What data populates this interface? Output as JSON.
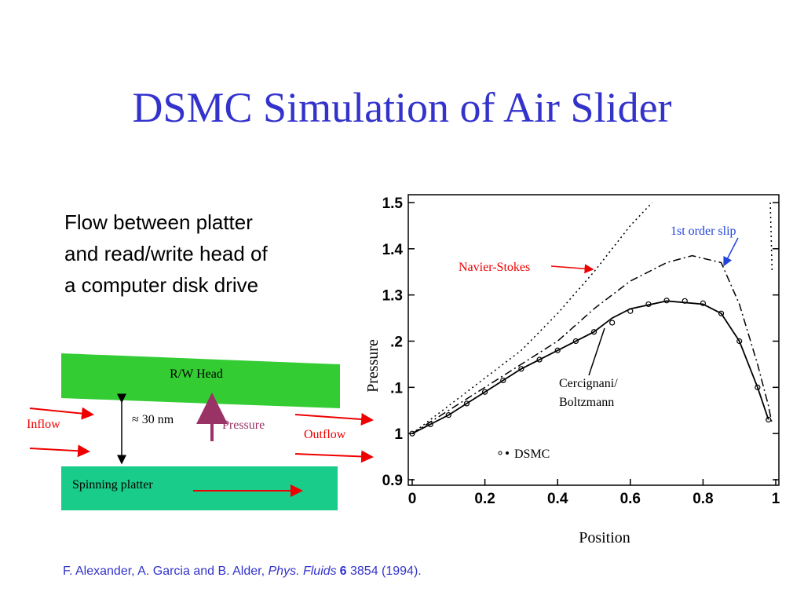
{
  "title": "DSMC Simulation of Air Slider",
  "description": [
    "Flow between platter",
    "and read/write head of",
    "a computer disk drive"
  ],
  "diagram": {
    "head": "R/W Head",
    "gap": "≈ 30 nm",
    "pressure": "Pressure",
    "inflow": "Inflow",
    "outflow": "Outflow",
    "platter": "Spinning platter"
  },
  "citation": {
    "authors": "F. Alexander, A. Garcia and B. Alder, ",
    "journal": "Phys. Fluids",
    "volume": "6",
    "rest": " 3854 (1994)."
  },
  "chart_data": {
    "type": "line",
    "xlabel": "Position",
    "ylabel": "Pressure",
    "xlim": [
      0,
      1
    ],
    "ylim": [
      0.9,
      1.5
    ],
    "xticks": [
      0,
      0.2,
      0.4,
      0.6,
      0.8,
      1
    ],
    "yticks": [
      0.9,
      {
        "value": 1,
        "label": "1"
      },
      {
        "value": 1.1,
        "label": ".1"
      },
      {
        "value": 1.2,
        "label": ".2"
      },
      1.3,
      1.4,
      1.5
    ],
    "series": [
      {
        "name": "Navier-Stokes",
        "color": "#000000",
        "dash": "dotted",
        "x": [
          0,
          0.1,
          0.2,
          0.3,
          0.4,
          0.5,
          0.6,
          0.66,
          null,
          0.985,
          0.99
        ],
        "values": [
          1.0,
          1.06,
          1.12,
          1.18,
          1.26,
          1.35,
          1.45,
          1.5,
          null,
          1.5,
          1.35
        ]
      },
      {
        "name": "1st order slip",
        "color": "#000000",
        "dash": "dashdot",
        "x": [
          0,
          0.2,
          0.4,
          0.5,
          0.6,
          0.7,
          0.77,
          0.85,
          0.9,
          0.95,
          0.98,
          0.99
        ],
        "values": [
          1.0,
          1.1,
          1.2,
          1.27,
          1.33,
          1.37,
          1.385,
          1.37,
          1.28,
          1.15,
          1.06,
          1.02
        ]
      },
      {
        "name": "Cercignani/ Boltzmann",
        "color": "#000000",
        "dash": "solid",
        "x": [
          0,
          0.1,
          0.2,
          0.3,
          0.4,
          0.5,
          0.55,
          0.6,
          0.7,
          0.8,
          0.85,
          0.9,
          0.95,
          0.98
        ],
        "values": [
          1.0,
          1.04,
          1.09,
          1.14,
          1.18,
          1.22,
          1.25,
          1.27,
          1.287,
          1.28,
          1.26,
          1.2,
          1.1,
          1.03
        ]
      },
      {
        "name": "DSMC",
        "color": "#000000",
        "marker": "circle",
        "x": [
          0,
          0.05,
          0.1,
          0.15,
          0.2,
          0.25,
          0.3,
          0.35,
          0.4,
          0.45,
          0.5,
          0.55,
          0.6,
          0.65,
          0.7,
          0.75,
          0.8,
          0.85,
          0.9,
          0.95,
          0.98
        ],
        "values": [
          1.0,
          1.02,
          1.04,
          1.065,
          1.09,
          1.115,
          1.14,
          1.16,
          1.18,
          1.2,
          1.22,
          1.24,
          1.265,
          1.28,
          1.288,
          1.287,
          1.282,
          1.26,
          1.2,
          1.1,
          1.03
        ]
      }
    ]
  }
}
